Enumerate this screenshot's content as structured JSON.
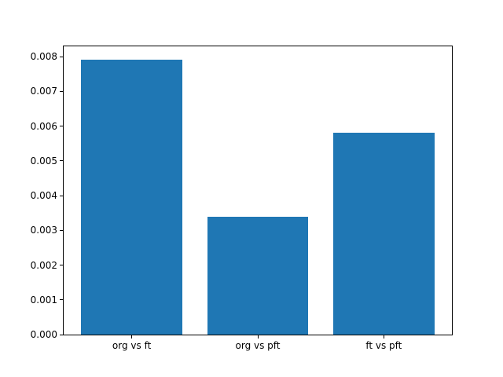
{
  "chart_data": {
    "type": "bar",
    "categories": [
      "org vs ft",
      "org vs pft",
      "ft vs pft"
    ],
    "values": [
      0.0079,
      0.0034,
      0.0058
    ],
    "title": "",
    "xlabel": "",
    "ylabel": "",
    "ylim": [
      0,
      0.008295
    ],
    "yticks": [
      0.0,
      0.001,
      0.002,
      0.003,
      0.004,
      0.005,
      0.006,
      0.007,
      0.008
    ],
    "ytick_labels": [
      "0.000",
      "0.001",
      "0.002",
      "0.003",
      "0.004",
      "0.005",
      "0.006",
      "0.007",
      "0.008"
    ],
    "bar_color": "#1f77b4",
    "bar_width_fraction": 0.8,
    "x_margin_units": 0.54,
    "grid": false,
    "legend": null,
    "background": "#ffffff"
  }
}
